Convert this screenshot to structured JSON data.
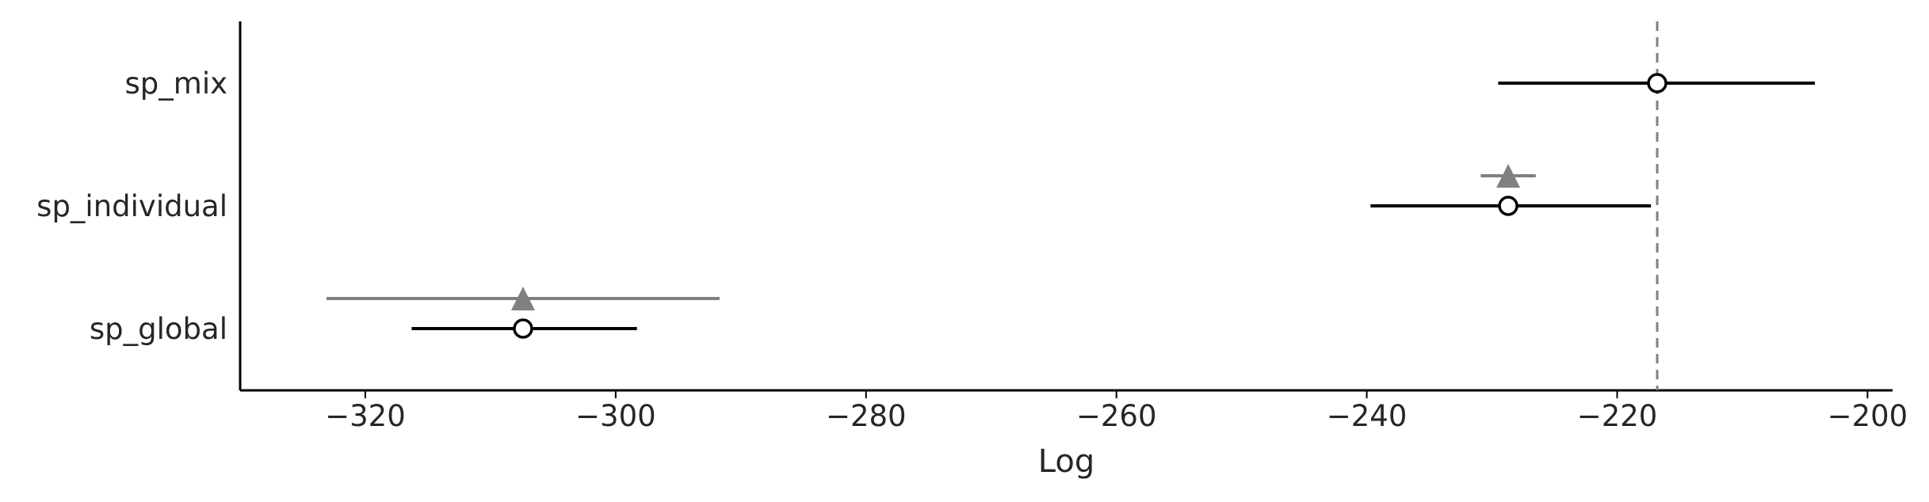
{
  "chart_data": {
    "type": "scatter",
    "xlabel": "Log",
    "ylabel": "",
    "xlim": [
      -330,
      -198
    ],
    "xticks": [
      -320,
      -300,
      -280,
      -260,
      -240,
      -220,
      -200
    ],
    "xtick_labels": [
      "−320",
      "−300",
      "−280",
      "−260",
      "−240",
      "−220",
      "−200"
    ],
    "categories": [
      "sp_mix",
      "sp_individual",
      "sp_global"
    ],
    "reference_line": {
      "x": -216.8,
      "style": "dashed",
      "color": "#808080"
    },
    "series": [
      {
        "marker": "circle",
        "color": "#000000",
        "points": [
          {
            "category": "sp_mix",
            "value": -216.8,
            "low": -229.5,
            "high": -204.2
          },
          {
            "category": "sp_individual",
            "value": -228.7,
            "low": -239.7,
            "high": -217.3
          },
          {
            "category": "sp_global",
            "value": -307.4,
            "low": -316.3,
            "high": -298.3
          }
        ]
      },
      {
        "marker": "triangle",
        "color": "#808080",
        "points": [
          {
            "category": "sp_individual",
            "value": -228.7,
            "low": -230.9,
            "high": -226.5
          },
          {
            "category": "sp_global",
            "value": -307.4,
            "low": -323.1,
            "high": -291.7
          }
        ]
      }
    ],
    "grid": false
  }
}
